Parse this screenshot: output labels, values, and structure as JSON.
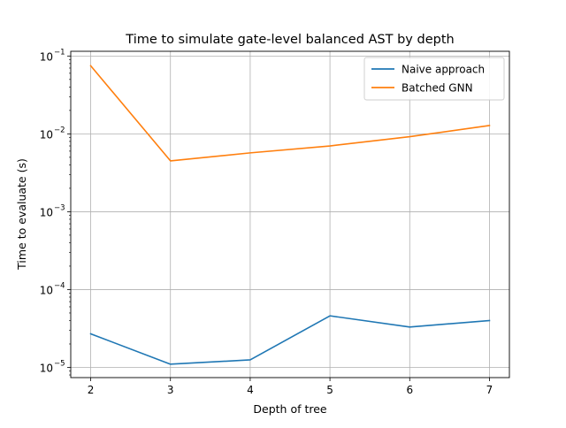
{
  "chart_data": {
    "type": "line",
    "title": "Time to simulate gate-level balanced AST by depth",
    "xlabel": "Depth of tree",
    "ylabel": "Time to evaluate (s)",
    "x": [
      2,
      3,
      4,
      5,
      6,
      7
    ],
    "xticks": [
      2,
      3,
      4,
      5,
      6,
      7
    ],
    "xlim": [
      1.75,
      7.25
    ],
    "yscale": "log",
    "ylim": [
      7.4e-06,
      0.115
    ],
    "yticks": [
      {
        "value": 1e-05,
        "mantissa": "10",
        "exponent": "−5"
      },
      {
        "value": 0.0001,
        "mantissa": "10",
        "exponent": "−4"
      },
      {
        "value": 0.001,
        "mantissa": "10",
        "exponent": "−3"
      },
      {
        "value": 0.01,
        "mantissa": "10",
        "exponent": "−2"
      },
      {
        "value": 0.1,
        "mantissa": "10",
        "exponent": "−1"
      }
    ],
    "grid": true,
    "legend_position": "top-right",
    "series": [
      {
        "name": "Naive approach",
        "color": "#1f77b4",
        "values": [
          2.7e-05,
          1.1e-05,
          1.25e-05,
          4.6e-05,
          3.3e-05,
          4e-05
        ]
      },
      {
        "name": "Batched GNN",
        "color": "#ff7f0e",
        "values": [
          0.075,
          0.0045,
          0.0057,
          0.007,
          0.0092,
          0.0128
        ]
      }
    ]
  }
}
